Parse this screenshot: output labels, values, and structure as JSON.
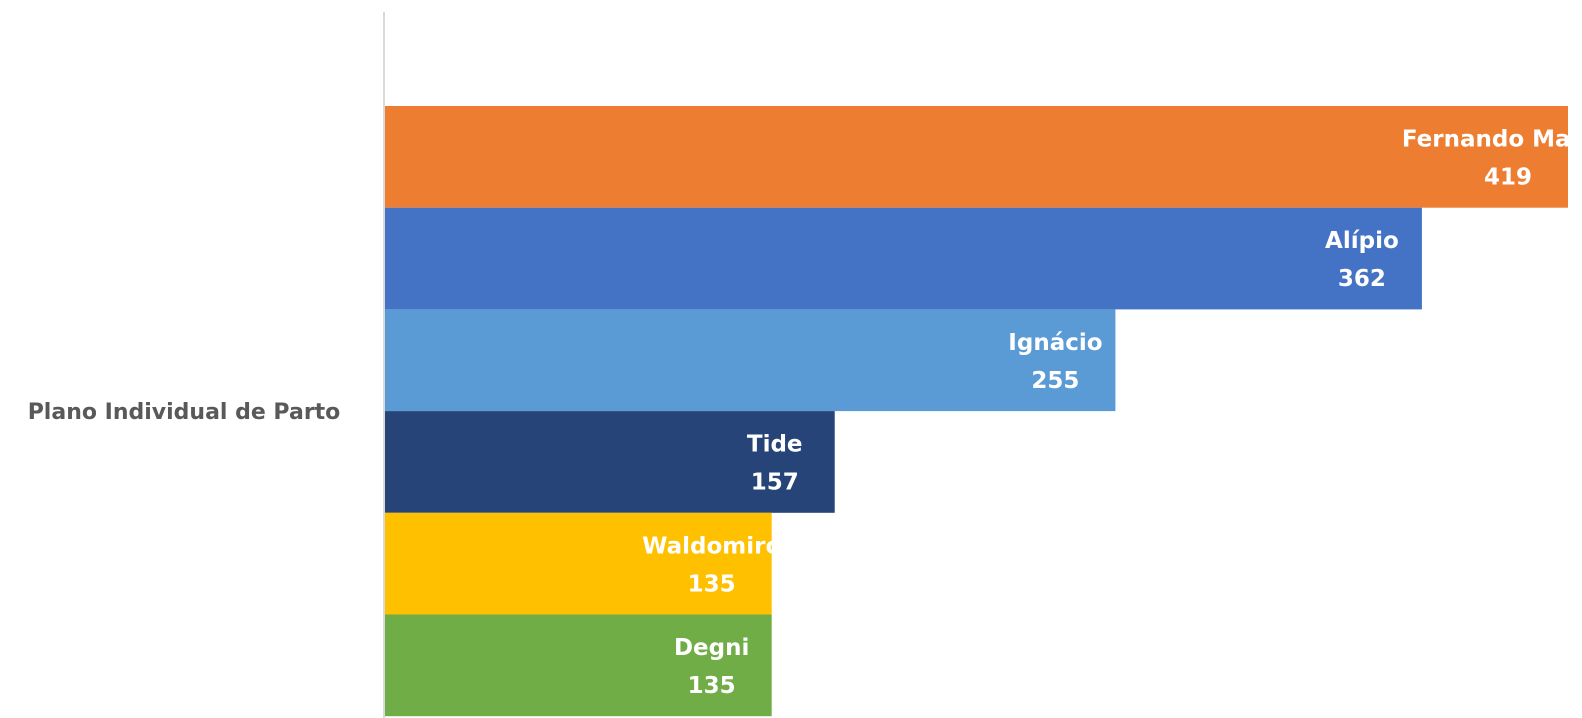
{
  "chart_data": {
    "type": "bar",
    "orientation": "horizontal",
    "categories": [
      "Plano Individual de Parto"
    ],
    "xlim": [
      0,
      413
    ],
    "series": [
      {
        "name": "Fernando Mauro",
        "color": "#ed7d31",
        "values": [
          419
        ]
      },
      {
        "name": "Alípio",
        "color": "#4472c4",
        "values": [
          362
        ]
      },
      {
        "name": "Ignácio",
        "color": "#5b9bd5",
        "values": [
          255
        ]
      },
      {
        "name": "Tide",
        "color": "#264478",
        "values": [
          157
        ]
      },
      {
        "name": "Waldomiro",
        "color": "#ffc000",
        "values": [
          135
        ]
      },
      {
        "name": "Degni",
        "color": "#70ad47",
        "values": [
          135
        ]
      }
    ]
  }
}
